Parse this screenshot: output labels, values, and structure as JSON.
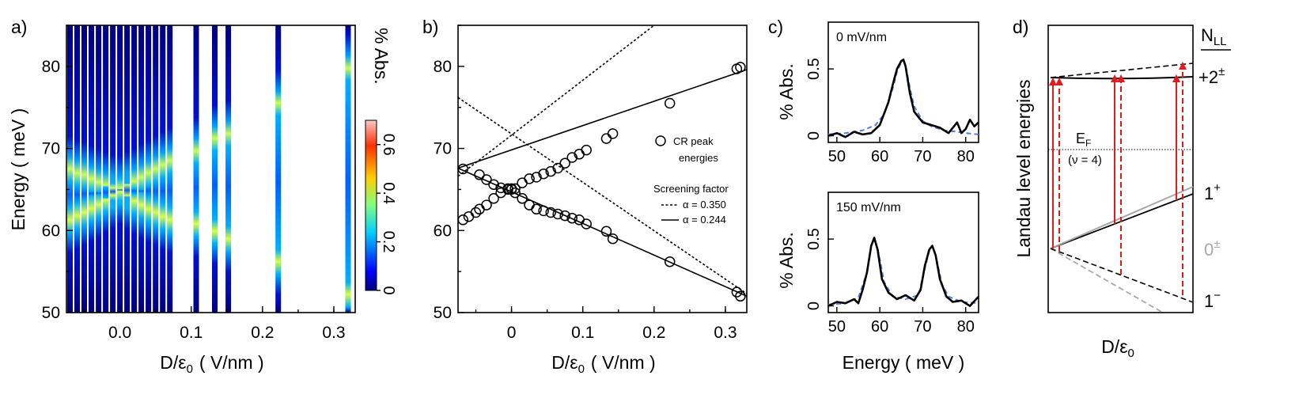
{
  "chart_data": [
    {
      "panel": "a)",
      "type": "heatmap",
      "xlabel": "D/ε",
      "xlabel_sub": "0",
      "xlabel_unit": "( V/nm )",
      "ylabel": "Energy  ( meV )",
      "xlim": [
        -0.075,
        0.33
      ],
      "ylim": [
        50,
        85
      ],
      "xticks": [
        0.0,
        0.1,
        0.2,
        0.3
      ],
      "xtick_labels": [
        "0.0",
        "0.1",
        "0.2",
        "0.3"
      ],
      "yticks": [
        50,
        60,
        70,
        80
      ],
      "colorbar": {
        "label": "% Abs.",
        "range": [
          0,
          0.7
        ],
        "ticks": [
          0,
          0.2,
          0.4,
          0.6
        ],
        "tick_labels": [
          "0",
          "0.2",
          "0.4",
          "0.6"
        ]
      },
      "columns_x": [
        -0.07,
        -0.06,
        -0.05,
        -0.04,
        -0.03,
        -0.02,
        -0.01,
        0.0,
        0.01,
        0.02,
        0.03,
        0.04,
        0.05,
        0.06,
        0.07,
        0.107,
        0.133,
        0.152,
        0.222,
        0.32
      ],
      "column_peaks_meV": [
        [
          61.3,
          67.5
        ],
        [
          61.8,
          67.0
        ],
        [
          62.2,
          66.8
        ],
        [
          62.7,
          66.3
        ],
        [
          63.2,
          65.9
        ],
        [
          63.8,
          65.5
        ],
        [
          64.3,
          65.2
        ],
        [
          64.8,
          65.1
        ],
        [
          64.2,
          65.6
        ],
        [
          63.6,
          66.0
        ],
        [
          63.1,
          66.5
        ],
        [
          62.6,
          67.0
        ],
        [
          62.2,
          67.5
        ],
        [
          61.7,
          68.0
        ],
        [
          61.3,
          68.5
        ],
        [
          60.8,
          69.7
        ],
        [
          59.9,
          71.2
        ],
        [
          59.0,
          71.8
        ],
        [
          56.2,
          75.5
        ],
        [
          52.2,
          79.8
        ]
      ]
    },
    {
      "panel": "b)",
      "type": "scatter",
      "xlabel": "D/ε",
      "xlabel_sub": "0",
      "xlabel_unit": "( V/nm )",
      "xlim": [
        -0.075,
        0.33
      ],
      "ylim": [
        50,
        85
      ],
      "xticks": [
        0.0,
        0.1,
        0.2,
        0.3
      ],
      "xtick_labels": [
        "0",
        "0.1",
        "0.2",
        "0.3"
      ],
      "yticks": [
        50,
        60,
        70,
        80
      ],
      "legend_points": "CR peak",
      "legend_points_2": "energies",
      "legend_title": "Screening factor",
      "legend_dashed": "α = 0.350",
      "legend_solid": "α = 0.244",
      "series": [
        {
          "x": [
            -0.068,
            -0.06,
            -0.05,
            -0.045,
            -0.035,
            -0.025,
            -0.015,
            -0.005,
            0.0,
            0.005,
            0.015,
            0.025,
            0.035,
            0.045,
            0.055,
            0.065,
            0.075,
            0.085,
            0.095,
            0.105,
            0.133,
            0.142,
            0.222,
            0.316,
            0.321
          ],
          "y": [
            61.3,
            61.7,
            62.2,
            62.6,
            63.1,
            63.9,
            64.6,
            65.0,
            65.1,
            65.1,
            65.8,
            66.3,
            66.5,
            66.9,
            67.2,
            67.6,
            68.2,
            68.9,
            69.3,
            69.8,
            71.2,
            71.8,
            75.5,
            79.7,
            79.9
          ]
        },
        {
          "x": [
            -0.068,
            -0.045,
            -0.035,
            -0.025,
            -0.015,
            -0.005,
            0.0,
            0.005,
            0.015,
            0.025,
            0.035,
            0.045,
            0.055,
            0.065,
            0.075,
            0.085,
            0.095,
            0.105,
            0.133,
            0.142,
            0.222,
            0.316,
            0.321
          ],
          "y": [
            67.5,
            66.8,
            66.2,
            65.6,
            65.2,
            65.1,
            65.0,
            64.6,
            63.9,
            63.1,
            62.6,
            62.4,
            62.2,
            62.0,
            61.8,
            61.5,
            61.3,
            60.8,
            59.9,
            59.0,
            56.2,
            52.5,
            52.0
          ]
        }
      ],
      "fit_solid_up": {
        "x0": -0.075,
        "y0": 67.6,
        "x1": 0.33,
        "y1": 79.6
      },
      "fit_solid_down": {
        "x0": -0.075,
        "y0": 67.6,
        "x1": 0.33,
        "y1": 52.0
      },
      "fit_dashed_up": {
        "x0": -0.075,
        "y0": 66.6,
        "x1": 0.2,
        "y1": 85.0
      },
      "fit_dashed_down": {
        "x0": -0.075,
        "y0": 76.2,
        "x1": 0.33,
        "y1": 52.3
      }
    },
    {
      "panel": "c)",
      "type": "line",
      "subplots": [
        {
          "annotation": "0 mV/nm",
          "xlim": [
            48,
            83
          ],
          "ylim": [
            -0.05,
            0.85
          ],
          "xticks": [
            50,
            60,
            70,
            80
          ],
          "yticks": [
            0,
            0.5
          ],
          "ytick_labels": [
            "0",
            "0.5"
          ],
          "ylabel": "% Abs.",
          "measured": {
            "x": [
              48,
              50,
              52,
              54,
              56,
              58,
              60,
              62,
              63,
              64,
              65,
              65.5,
              66,
              67,
              68,
              70,
              72,
              74,
              76,
              78,
              79,
              80,
              81,
              82,
              83
            ],
            "y": [
              0.0,
              0.02,
              -0.01,
              0.03,
              0.01,
              0.02,
              0.08,
              0.25,
              0.38,
              0.5,
              0.56,
              0.57,
              0.52,
              0.32,
              0.18,
              0.1,
              0.08,
              0.06,
              0.02,
              0.1,
              0.02,
              0.05,
              0.12,
              0.07,
              0.1
            ]
          },
          "fit": {
            "x": [
              48,
              52,
              56,
              59,
              61,
              63,
              64,
              65,
              65.5,
              66,
              67,
              68,
              70,
              72,
              75,
              78,
              80,
              83
            ],
            "y": [
              0.01,
              0.02,
              0.04,
              0.08,
              0.16,
              0.35,
              0.48,
              0.55,
              0.56,
              0.53,
              0.36,
              0.22,
              0.11,
              0.07,
              0.04,
              0.03,
              0.02,
              0.01
            ]
          }
        },
        {
          "annotation": "150 mV/nm",
          "xlim": [
            48,
            83
          ],
          "ylim": [
            -0.05,
            0.85
          ],
          "xticks": [
            50,
            60,
            70,
            80
          ],
          "yticks": [
            0,
            0.5
          ],
          "ytick_labels": [
            "0",
            "0.5"
          ],
          "ylabel": "% Abs.",
          "xlabel": "Energy  ( meV )",
          "measured": {
            "x": [
              48,
              50,
              52,
              54,
              55,
              56,
              57,
              58,
              58.7,
              59.5,
              60.5,
              62,
              64,
              66,
              68,
              69.5,
              70.5,
              71.5,
              72.2,
              73,
              74,
              75.5,
              77,
              79,
              81,
              83
            ],
            "y": [
              0.0,
              0.03,
              0.02,
              0.05,
              0.02,
              0.12,
              0.25,
              0.45,
              0.51,
              0.42,
              0.2,
              0.1,
              0.05,
              0.08,
              0.04,
              0.12,
              0.3,
              0.42,
              0.45,
              0.38,
              0.2,
              0.07,
              0.03,
              0.04,
              0.0,
              0.07
            ]
          },
          "fit": {
            "x": [
              48,
              52,
              55,
              57,
              58,
              58.7,
              59.5,
              61,
              63,
              66,
              69,
              70.5,
              71.5,
              72.2,
              73,
              74.5,
              76,
              79,
              83
            ],
            "y": [
              0.01,
              0.02,
              0.06,
              0.25,
              0.45,
              0.5,
              0.43,
              0.18,
              0.07,
              0.05,
              0.08,
              0.28,
              0.41,
              0.45,
              0.38,
              0.16,
              0.07,
              0.03,
              0.02
            ]
          }
        }
      ]
    },
    {
      "panel": "d)",
      "type": "diagram",
      "ylabel": "Landau level energies",
      "xlabel": "D/ε",
      "xlabel_sub": "0",
      "header": "N",
      "header_sub": "LL",
      "levels": [
        {
          "label": "+2",
          "sup": "±",
          "color": "#000000"
        },
        {
          "label": "1",
          "sup": "+",
          "color": "#000000"
        },
        {
          "label": "0",
          "sup": "±",
          "color": "#a8a8a8"
        },
        {
          "label": "1",
          "sup": "−",
          "color": "#000000"
        }
      ],
      "fermi_label": "E",
      "fermi_sub": "F",
      "fermi_fill": "(ν = 4)",
      "arrow_color": "#e31a1c",
      "gray_color": "#a8a8a8"
    }
  ]
}
